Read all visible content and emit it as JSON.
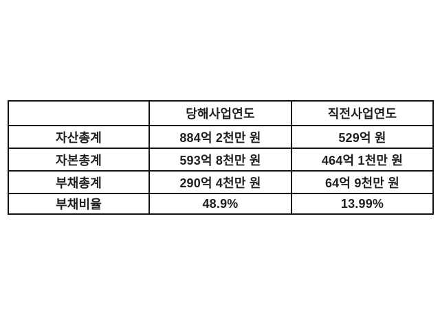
{
  "colors": {
    "background": "#ffffff",
    "border": "#111111",
    "text": "#1f1f1f"
  },
  "table": {
    "columns": [
      "",
      "당해사업연도",
      "직전사업연도"
    ],
    "rows": [
      {
        "label": "자산총계",
        "current": "884억 2천만 원",
        "previous": "529억 원"
      },
      {
        "label": "자본총계",
        "current": "593억 8천만 원",
        "previous": "464억 1천만 원"
      },
      {
        "label": "부채총계",
        "current": "290억 4천만 원",
        "previous": "64억 9천만 원"
      },
      {
        "label": "부채비율",
        "current": "48.9%",
        "previous": "13.99%"
      }
    ]
  }
}
